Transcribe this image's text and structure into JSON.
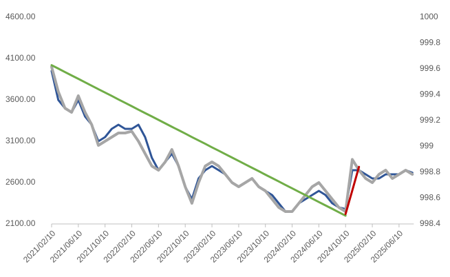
{
  "chart_data": {
    "type": "line",
    "categories": [
      "2021/02/10",
      null,
      null,
      null,
      "2021/06/10",
      null,
      null,
      null,
      "2021/10/10",
      null,
      null,
      null,
      "2022/02/10",
      null,
      null,
      null,
      "2022/06/10",
      null,
      null,
      null,
      "2022/10/10",
      null,
      null,
      null,
      "2023/02/10",
      null,
      null,
      null,
      "2023/06/10",
      null,
      null,
      null,
      "2023/10/10",
      null,
      null,
      null,
      "2024/02/10",
      null,
      null,
      null,
      "2024/06/10",
      null,
      null,
      null,
      "2024/10/10",
      null,
      null,
      null,
      "2025/02/10",
      null,
      null,
      null,
      "2025/06/10",
      null,
      null
    ],
    "series": [
      {
        "color": "#2f5597",
        "width": 3,
        "values": [
          3950,
          3600,
          3500,
          3450,
          3600,
          3400,
          3300,
          3100,
          3150,
          3250,
          3300,
          3250,
          3250,
          3300,
          3150,
          2900,
          2750,
          2850,
          2950,
          2800,
          2550,
          2400,
          2650,
          2750,
          2800,
          2750,
          2700,
          2600,
          2550,
          2600,
          2650,
          2550,
          2500,
          2450,
          2350,
          2250,
          2250,
          2350,
          2400,
          2450,
          2500,
          2450,
          2350,
          2300,
          2280,
          2750,
          2750,
          2700,
          2650,
          2650,
          2700,
          2700,
          2700,
          2750,
          2720
        ]
      },
      {
        "color": "#a6a6a6",
        "width": 4,
        "values": [
          4000,
          3700,
          3500,
          3450,
          3650,
          3450,
          3300,
          3050,
          3100,
          3150,
          3200,
          3200,
          3220,
          3100,
          2950,
          2800,
          2750,
          2850,
          3000,
          2800,
          2550,
          2350,
          2600,
          2800,
          2850,
          2800,
          2700,
          2600,
          2550,
          2600,
          2650,
          2550,
          2500,
          2400,
          2300,
          2250,
          2250,
          2350,
          2450,
          2550,
          2600,
          2500,
          2400,
          2300,
          2250,
          2880,
          2750,
          2650,
          2600,
          2700,
          2750,
          2650,
          2700,
          2750,
          2700
        ]
      },
      {
        "color": "#70ad47",
        "width": 3,
        "values": [
          4020,
          3979,
          3937,
          3896,
          3855,
          3813,
          3772,
          3730,
          3689,
          3648,
          3606,
          3565,
          3524,
          3482,
          3441,
          3400,
          3358,
          3317,
          3275,
          3234,
          3193,
          3151,
          3110,
          3069,
          3027,
          2986,
          2944,
          2903,
          2862,
          2820,
          2779,
          2738,
          2696,
          2655,
          2614,
          2572,
          2531,
          2489,
          2448,
          2407,
          2365,
          2324,
          2283,
          2241,
          2200,
          null,
          null,
          null,
          null,
          null,
          null,
          null,
          null,
          null,
          null
        ]
      },
      {
        "color": "#c00000",
        "width": 3,
        "values": [
          null,
          null,
          null,
          null,
          null,
          null,
          null,
          null,
          null,
          null,
          null,
          null,
          null,
          null,
          null,
          null,
          null,
          null,
          null,
          null,
          null,
          null,
          null,
          null,
          null,
          null,
          null,
          null,
          null,
          null,
          null,
          null,
          null,
          null,
          null,
          null,
          null,
          null,
          null,
          null,
          null,
          null,
          null,
          null,
          2220,
          2505,
          2790,
          null,
          null,
          null,
          null,
          null,
          null,
          null,
          null
        ]
      }
    ],
    "ylim": [
      2100,
      4600
    ],
    "yticks": [
      {
        "value": 2100,
        "label": "2100.00"
      },
      {
        "value": 2600,
        "label": "2600.00"
      },
      {
        "value": 3100,
        "label": "3100.00"
      },
      {
        "value": 3600,
        "label": "3600.00"
      },
      {
        "value": 4100,
        "label": "4100.00"
      },
      {
        "value": 4600,
        "label": "4600.00"
      }
    ],
    "y2lim": [
      998.4,
      1000
    ],
    "y2ticks": [
      998.4,
      998.6,
      998.8,
      999,
      999.2,
      999.4,
      999.6,
      999.8,
      1000
    ],
    "grid": false
  }
}
